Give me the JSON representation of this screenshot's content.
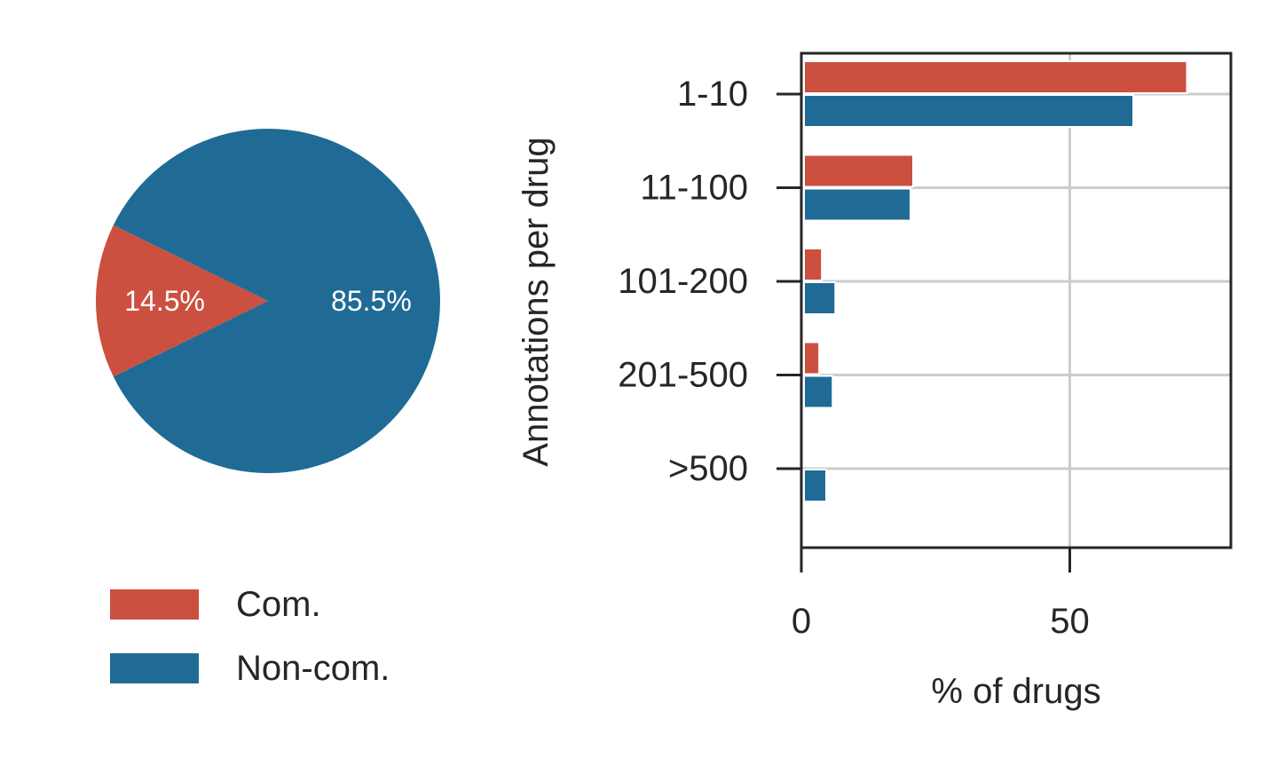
{
  "colors": {
    "com": "#CB5040",
    "noncom": "#1F6B96",
    "grid": "#CCCCCC",
    "axis": "#262626"
  },
  "chart_data": [
    {
      "type": "pie",
      "title": "",
      "slices": [
        {
          "name": "Com.",
          "value": 14.5,
          "label": "14.5%",
          "color": "#CB5040"
        },
        {
          "name": "Non-com.",
          "value": 85.5,
          "label": "85.5%",
          "color": "#1F6B96"
        }
      ],
      "legend": {
        "placement": "bottom-left",
        "entries": [
          "Com.",
          "Non-com."
        ]
      }
    },
    {
      "type": "bar",
      "orientation": "horizontal",
      "title": "",
      "categories": [
        "1-10",
        "11-100",
        "101-200",
        "201-500",
        ">500"
      ],
      "series": [
        {
          "name": "Com.",
          "color": "#CB5040",
          "values": [
            71,
            20,
            3,
            2.5,
            0
          ]
        },
        {
          "name": "Non-com.",
          "color": "#1F6B96",
          "values": [
            61,
            19.5,
            5.5,
            5,
            3.8
          ]
        }
      ],
      "xlabel": "% of drugs",
      "ylabel": "Annotations per drug",
      "xlim": [
        0,
        80
      ],
      "xticks": [
        0,
        50
      ],
      "xtick_labels": [
        "0",
        "50"
      ],
      "grid": true
    }
  ]
}
